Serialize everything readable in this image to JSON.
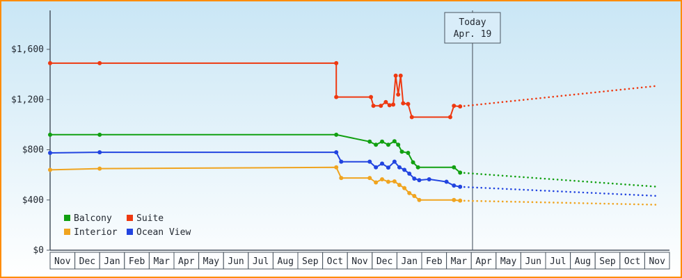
{
  "frame": {
    "border_color": "#ff8c00",
    "background_top": "#c9e6f5",
    "background_bottom": "#ffffff",
    "axis_color": "#4a5560",
    "text_color": "#222831"
  },
  "today_marker": {
    "label_line1": "Today",
    "label_line2": "Apr. 19",
    "month_position": 17.05,
    "box_fill": "#d9edf9"
  },
  "chart_data": {
    "type": "line",
    "units": "USD",
    "x_axis": {
      "months": [
        "Nov",
        "Dec",
        "Jan",
        "Feb",
        "Mar",
        "Apr",
        "May",
        "Jun",
        "Jul",
        "Aug",
        "Sep",
        "Oct",
        "Nov",
        "Dec",
        "Jan",
        "Feb",
        "Mar",
        "Apr",
        "May",
        "Jun",
        "Jul",
        "Aug",
        "Sep",
        "Oct",
        "Nov"
      ]
    },
    "y_axis": {
      "tick_values": [
        0,
        400,
        800,
        1200,
        1600
      ],
      "tick_labels": [
        "$0",
        "$400",
        "$800",
        "$1,200",
        "$1,600"
      ],
      "max": 1600
    },
    "legend": {
      "position": "bottom-left",
      "order": [
        "Balcony",
        "Suite",
        "Interior",
        "Ocean View"
      ]
    },
    "series": [
      {
        "name": "Suite",
        "color": "#ee3911",
        "solid": [
          [
            0,
            1490
          ],
          [
            2,
            1490
          ],
          [
            11.55,
            1490
          ],
          [
            11.55,
            1220
          ],
          [
            12.95,
            1220
          ],
          [
            13.05,
            1150
          ],
          [
            13.35,
            1150
          ],
          [
            13.55,
            1180
          ],
          [
            13.7,
            1155
          ],
          [
            13.85,
            1160
          ],
          [
            13.95,
            1390
          ],
          [
            14.05,
            1240
          ],
          [
            14.15,
            1390
          ],
          [
            14.25,
            1170
          ],
          [
            14.45,
            1165
          ],
          [
            14.6,
            1060
          ],
          [
            16.15,
            1060
          ],
          [
            16.3,
            1150
          ],
          [
            16.55,
            1145
          ]
        ],
        "projection": [
          [
            16.55,
            1145
          ],
          [
            24.55,
            1310
          ]
        ]
      },
      {
        "name": "Balcony",
        "color": "#11a011",
        "solid": [
          [
            0,
            920
          ],
          [
            2,
            920
          ],
          [
            11.55,
            920
          ],
          [
            12.9,
            865
          ],
          [
            13.15,
            840
          ],
          [
            13.4,
            865
          ],
          [
            13.65,
            840
          ],
          [
            13.9,
            868
          ],
          [
            14.05,
            840
          ],
          [
            14.2,
            785
          ],
          [
            14.45,
            775
          ],
          [
            14.65,
            700
          ],
          [
            14.85,
            660
          ],
          [
            16.3,
            660
          ],
          [
            16.55,
            618
          ]
        ],
        "projection": [
          [
            16.55,
            618
          ],
          [
            24.55,
            505
          ]
        ]
      },
      {
        "name": "Ocean View",
        "color": "#2244e0",
        "solid": [
          [
            0,
            775
          ],
          [
            2,
            780
          ],
          [
            11.55,
            780
          ],
          [
            11.75,
            705
          ],
          [
            12.9,
            705
          ],
          [
            13.15,
            660
          ],
          [
            13.4,
            690
          ],
          [
            13.65,
            658
          ],
          [
            13.9,
            705
          ],
          [
            14.1,
            660
          ],
          [
            14.3,
            640
          ],
          [
            14.5,
            610
          ],
          [
            14.7,
            570
          ],
          [
            14.9,
            558
          ],
          [
            15.3,
            565
          ],
          [
            16.0,
            545
          ],
          [
            16.3,
            515
          ],
          [
            16.55,
            505
          ]
        ],
        "projection": [
          [
            16.55,
            505
          ],
          [
            24.55,
            432
          ]
        ]
      },
      {
        "name": "Interior",
        "color": "#f0a41f",
        "solid": [
          [
            0,
            640
          ],
          [
            2,
            650
          ],
          [
            11.55,
            660
          ],
          [
            11.75,
            575
          ],
          [
            12.9,
            575
          ],
          [
            13.15,
            540
          ],
          [
            13.4,
            565
          ],
          [
            13.65,
            545
          ],
          [
            13.9,
            548
          ],
          [
            14.1,
            520
          ],
          [
            14.3,
            495
          ],
          [
            14.5,
            455
          ],
          [
            14.7,
            432
          ],
          [
            14.9,
            400
          ],
          [
            16.3,
            400
          ],
          [
            16.55,
            395
          ]
        ],
        "projection": [
          [
            16.55,
            395
          ],
          [
            24.55,
            362
          ]
        ]
      }
    ]
  }
}
